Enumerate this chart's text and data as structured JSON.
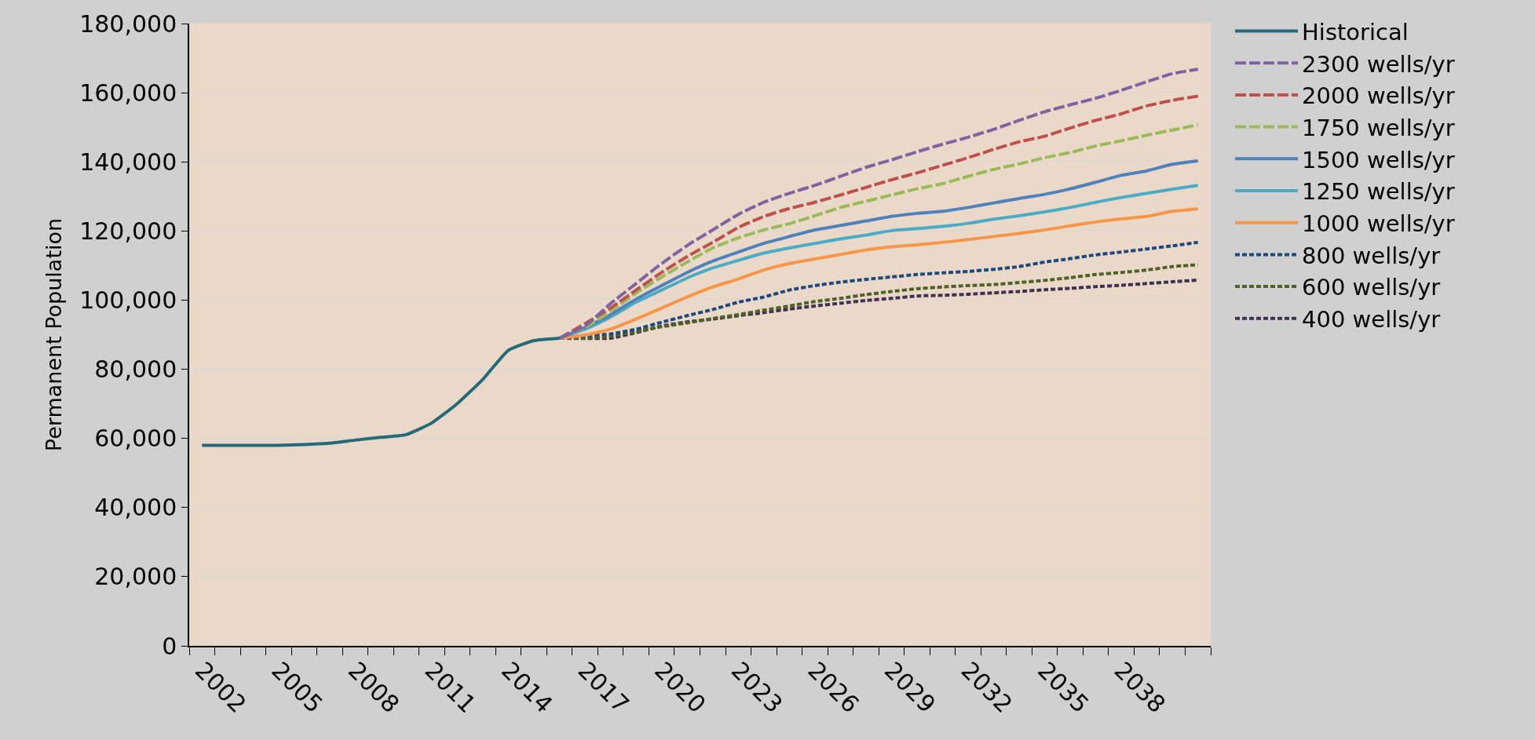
{
  "chart_data": {
    "type": "line",
    "ylabel": "Permanent Population",
    "categories": [
      "2002",
      null,
      null,
      "2005",
      null,
      null,
      "2008",
      null,
      null,
      "2011",
      null,
      null,
      "2014",
      null,
      null,
      "2017",
      null,
      null,
      "2020",
      null,
      null,
      "2023",
      null,
      null,
      "2026",
      null,
      null,
      "2029",
      null,
      null,
      "2032",
      null,
      null,
      "2035",
      null,
      null,
      "2038",
      null,
      null,
      null
    ],
    "ylim": [
      0,
      180000
    ],
    "yticks": [
      {
        "value": 0,
        "label": "0"
      },
      {
        "value": 20000,
        "label": "20,000"
      },
      {
        "value": 40000,
        "label": "40,000"
      },
      {
        "value": 60000,
        "label": "60,000"
      },
      {
        "value": 80000,
        "label": "80,000"
      },
      {
        "value": 100000,
        "label": "100,000"
      },
      {
        "value": 120000,
        "label": "120,000"
      },
      {
        "value": 140000,
        "label": "140,000"
      },
      {
        "value": 160000,
        "label": "160,000"
      },
      {
        "value": 180000,
        "label": "180,000"
      }
    ],
    "grid": "y",
    "legend": "right",
    "marker": "none",
    "series": [
      {
        "name": "Historical",
        "color": "#236b7a",
        "line_style": "solid",
        "values": [
          58000,
          58000,
          58000,
          58000,
          58200,
          58600,
          59500,
          60300,
          61100,
          64500,
          70100,
          77100,
          85500,
          88300,
          89000,
          null,
          null,
          null,
          null,
          null,
          null,
          null,
          null,
          null,
          null,
          null,
          null,
          null,
          null,
          null,
          null,
          null,
          null,
          null,
          null,
          null,
          null,
          null,
          null,
          null
        ]
      },
      {
        "name": "2300 wells/yr",
        "color": "#8064a2",
        "line_style": "dashed",
        "values": [
          null,
          null,
          null,
          null,
          null,
          null,
          null,
          null,
          null,
          null,
          null,
          null,
          null,
          null,
          89000,
          92500,
          99000,
          104800,
          110600,
          115800,
          120300,
          124800,
          128300,
          130900,
          133200,
          135800,
          138400,
          140600,
          142900,
          145100,
          147100,
          149400,
          152000,
          154500,
          156500,
          158400,
          160700,
          163200,
          165500,
          166800
        ]
      },
      {
        "name": "2000 wells/yr",
        "color": "#c0504d",
        "line_style": "dashed",
        "values": [
          null,
          null,
          null,
          null,
          null,
          null,
          null,
          null,
          null,
          null,
          null,
          null,
          null,
          null,
          89000,
          93200,
          97700,
          102900,
          108000,
          112600,
          116700,
          121000,
          124200,
          126500,
          128300,
          130400,
          132600,
          134800,
          136800,
          139000,
          141200,
          143600,
          145800,
          147400,
          149800,
          152000,
          153900,
          156200,
          157800,
          159000
        ]
      },
      {
        "name": "1750 wells/yr",
        "color": "#9bbb59",
        "line_style": "dashed",
        "values": [
          null,
          null,
          null,
          null,
          null,
          null,
          null,
          null,
          null,
          null,
          null,
          null,
          null,
          null,
          89000,
          92100,
          96700,
          102000,
          106700,
          111000,
          115100,
          118000,
          120300,
          122100,
          124400,
          126800,
          128600,
          130400,
          132200,
          133700,
          135800,
          137800,
          139400,
          141200,
          142700,
          144600,
          146100,
          147700,
          149200,
          150700
        ]
      },
      {
        "name": "1500 wells/yr",
        "color": "#4f81bd",
        "line_style": "solid",
        "values": [
          null,
          null,
          null,
          null,
          null,
          null,
          null,
          null,
          null,
          null,
          null,
          null,
          null,
          null,
          89000,
          92100,
          95800,
          100300,
          104200,
          108000,
          111300,
          113900,
          116400,
          118400,
          120300,
          121600,
          122900,
          124200,
          125100,
          125700,
          126800,
          128100,
          129400,
          130600,
          132200,
          134100,
          136100,
          137400,
          139300,
          140300
        ]
      },
      {
        "name": "1250 wells/yr",
        "color": "#4bacc6",
        "line_style": "solid",
        "values": [
          null,
          null,
          null,
          null,
          null,
          null,
          null,
          null,
          null,
          null,
          null,
          null,
          null,
          null,
          89000,
          91600,
          95100,
          99400,
          102900,
          106400,
          109300,
          111500,
          113600,
          115100,
          116400,
          117700,
          118800,
          120100,
          120700,
          121300,
          122200,
          123400,
          124400,
          125500,
          126800,
          128300,
          129700,
          130900,
          132100,
          133200
        ]
      },
      {
        "name": "1000 wells/yr",
        "color": "#f79646",
        "line_style": "solid",
        "values": [
          null,
          null,
          null,
          null,
          null,
          null,
          null,
          null,
          null,
          null,
          null,
          null,
          null,
          null,
          89000,
          89900,
          91600,
          94500,
          97700,
          100900,
          103800,
          106100,
          108700,
          110600,
          111900,
          113200,
          114500,
          115400,
          116000,
          116700,
          117500,
          118400,
          119300,
          120300,
          121500,
          122600,
          123500,
          124200,
          125700,
          126400
        ]
      },
      {
        "name": "800 wells/yr",
        "color": "#1f497d",
        "line_style": "dotted",
        "values": [
          null,
          null,
          null,
          null,
          null,
          null,
          null,
          null,
          null,
          null,
          null,
          null,
          null,
          null,
          89000,
          89700,
          90200,
          91600,
          93600,
          95500,
          97300,
          99400,
          100900,
          102900,
          104200,
          105200,
          106000,
          106700,
          107400,
          107900,
          108300,
          108900,
          109700,
          111000,
          112000,
          113100,
          113900,
          114800,
          115700,
          116700
        ]
      },
      {
        "name": "600 wells/yr",
        "color": "#4f6228",
        "line_style": "dotted",
        "values": [
          null,
          null,
          null,
          null,
          null,
          null,
          null,
          null,
          null,
          null,
          null,
          null,
          null,
          null,
          89000,
          89000,
          89600,
          90900,
          92300,
          93400,
          94700,
          95800,
          97100,
          98300,
          99600,
          100500,
          101600,
          102500,
          103300,
          103800,
          104200,
          104500,
          105100,
          105700,
          106500,
          107400,
          108000,
          108700,
          109700,
          110200
        ]
      },
      {
        "name": "400 wells/yr",
        "color": "#3f3151",
        "line_style": "dotted",
        "values": [
          null,
          null,
          null,
          null,
          null,
          null,
          null,
          null,
          null,
          null,
          null,
          null,
          null,
          null,
          89000,
          88900,
          89000,
          90600,
          92500,
          93700,
          94500,
          95500,
          96400,
          97400,
          98300,
          99100,
          99900,
          100500,
          101200,
          101400,
          101700,
          102100,
          102500,
          103000,
          103400,
          103900,
          104300,
          104800,
          105300,
          105800
        ]
      }
    ]
  }
}
